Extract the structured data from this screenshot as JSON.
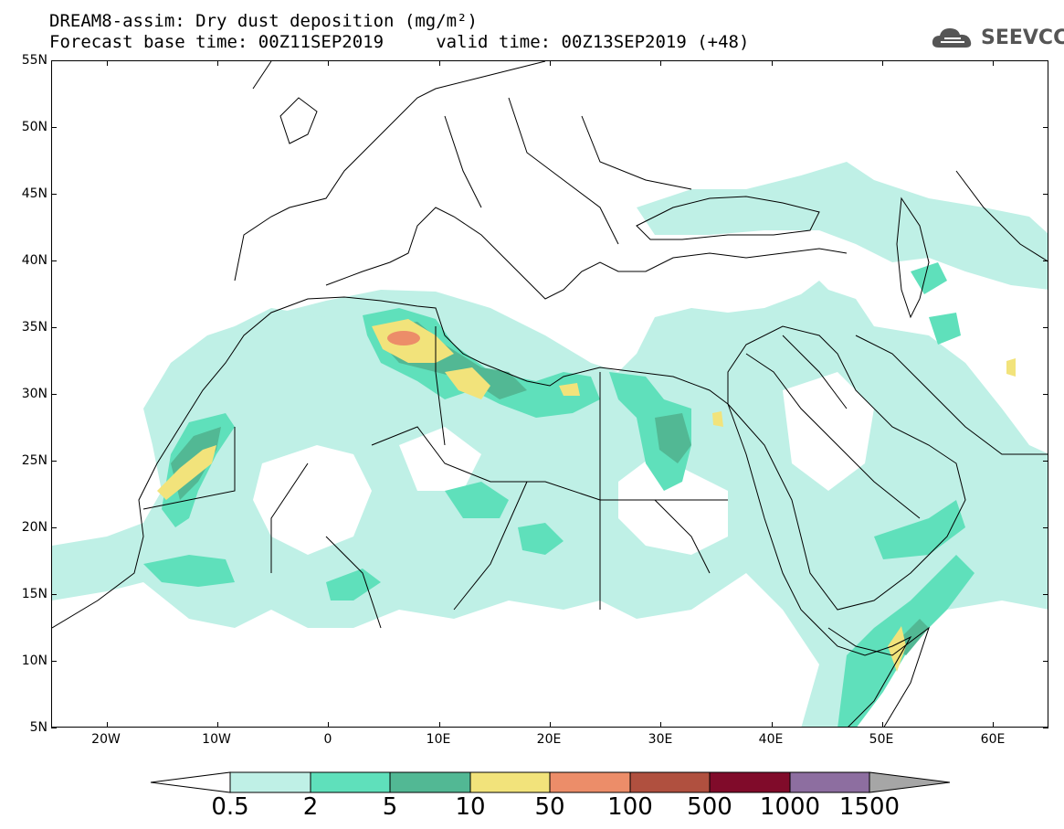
{
  "header": {
    "title_line1": "DREAM8-assim: Dry dust deposition (mg/m²)",
    "title_line2": "Forecast base time: 00Z11SEP2019     valid time: 00Z13SEP2019 (+48)",
    "logo_text": "SEEVCCC"
  },
  "map": {
    "region": "North Africa, Europe and Middle East",
    "lon_range": [
      -25,
      65
    ],
    "lat_range": [
      5,
      55
    ],
    "lat_ticks": [
      "55N",
      "50N",
      "45N",
      "40N",
      "35N",
      "30N",
      "25N",
      "20N",
      "15N",
      "10N",
      "5N"
    ],
    "lon_ticks": [
      "20W",
      "10W",
      "0",
      "10E",
      "20E",
      "30E",
      "40E",
      "50E",
      "60E"
    ],
    "colors": {
      "c1": "#bff0e6",
      "c2": "#5fe0bb",
      "c3": "#52b894",
      "c4": "#f2e37b",
      "c5": "#ec8d69",
      "c6": "#b0503f",
      "c7": "#800b2a",
      "c8": "#8d6ea0",
      "over": "#a6a6a6"
    }
  },
  "legend": {
    "levels": [
      "0.5",
      "2",
      "5",
      "10",
      "50",
      "100",
      "500",
      "1000",
      "1500"
    ],
    "colors": [
      "#bff0e6",
      "#5fe0bb",
      "#52b894",
      "#f2e37b",
      "#ec8d69",
      "#b0503f",
      "#800b2a",
      "#8d6ea0"
    ],
    "under_color": "#ffffff",
    "over_color": "#a6a6a6"
  }
}
